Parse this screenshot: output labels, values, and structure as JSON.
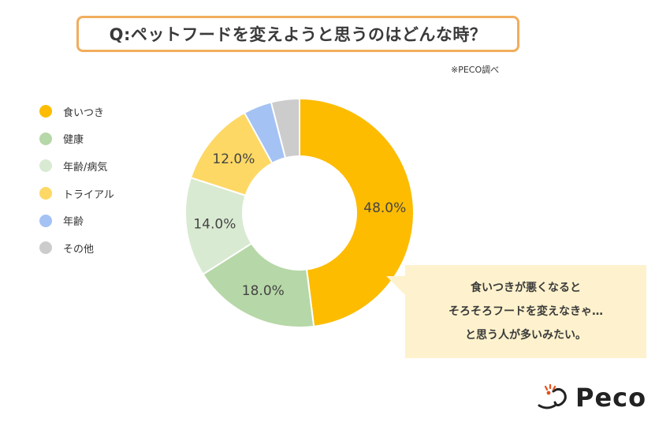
{
  "title": "Q:ペットフードを変えようと思うのはどんな時？",
  "source": "※PECO調べ",
  "chart_data": {
    "type": "pie",
    "labels": [
      "食いつき",
      "健康",
      "年齢/病気",
      "トライアル",
      "年齢",
      "その他"
    ],
    "values": [
      48.0,
      18.0,
      14.0,
      12.0,
      4.0,
      4.0
    ],
    "value_labels": [
      "48.0%",
      "18.0%",
      "14.0%",
      "12.0%",
      "",
      ""
    ],
    "colors": [
      "#fdbc00",
      "#b6d7a7",
      "#d9ead2",
      "#fdd865",
      "#a4c2f4",
      "#cccccc"
    ],
    "legend_position": "left"
  },
  "callout": {
    "lines": [
      "食いつきが悪くなると",
      "そろそろフードを変えなきゃ…",
      "と思う人が多いみたい。"
    ]
  },
  "logo": {
    "text": "Peco"
  }
}
